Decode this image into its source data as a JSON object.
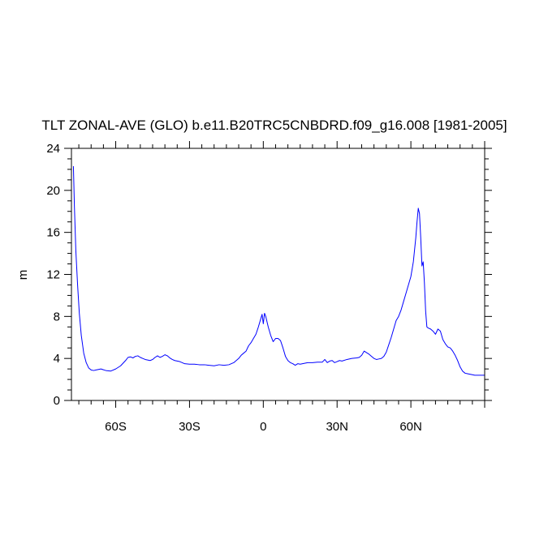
{
  "chart_data": {
    "type": "line",
    "title": "TLT ZONAL-AVE (GLO) b.e11.B20TRC5CNBDRD.f09_g16.008 [1981-2005]",
    "xlabel": "",
    "ylabel": "m",
    "xlim": [
      -78,
      90
    ],
    "ylim": [
      0,
      24
    ],
    "x_ticks": [
      -60,
      -30,
      0,
      30,
      60
    ],
    "x_tick_labels": [
      "60S",
      "30S",
      "0",
      "30N",
      "60N"
    ],
    "y_ticks": [
      0,
      4,
      8,
      12,
      16,
      20,
      24
    ],
    "y_tick_labels": [
      "0",
      "4",
      "8",
      "12",
      "16",
      "20",
      "24"
    ],
    "grid": false,
    "legend": "none",
    "series": [
      {
        "color": "#0000ff",
        "x": [
          -77.2,
          -76.8,
          -76.2,
          -75.5,
          -74.8,
          -74,
          -73,
          -72,
          -71,
          -70,
          -69,
          -68,
          -66,
          -64,
          -62,
          -60,
          -58,
          -56,
          -55,
          -54,
          -53,
          -52,
          -51,
          -50,
          -49,
          -48,
          -47,
          -46,
          -45,
          -44,
          -43,
          -42,
          -41,
          -40,
          -39,
          -38,
          -37,
          -36,
          -35,
          -34,
          -33,
          -32,
          -30,
          -28,
          -26,
          -24,
          -22,
          -20,
          -18,
          -16,
          -14,
          -12,
          -11,
          -10,
          -9,
          -8,
          -7,
          -6,
          -5,
          -4,
          -3,
          -2,
          -1,
          -0.5,
          0,
          0.5,
          1,
          2,
          3,
          4,
          5,
          6,
          7,
          8,
          9,
          10,
          11,
          12,
          13,
          14,
          15,
          16,
          17,
          18,
          20,
          22,
          24,
          25,
          26,
          27,
          28,
          29,
          30,
          31,
          32,
          34,
          36,
          38,
          39,
          40,
          41,
          42,
          43,
          44,
          45,
          46,
          47,
          48,
          49,
          50,
          51,
          52,
          53,
          54,
          55,
          56,
          57,
          58,
          59,
          60,
          61,
          62,
          62.5,
          63,
          63.5,
          64,
          64.5,
          65,
          65.5,
          66,
          66.5,
          67,
          68,
          69,
          70,
          71,
          72,
          73,
          74,
          75,
          76,
          77,
          78,
          79,
          80,
          81,
          82,
          83,
          84,
          85,
          86,
          88,
          90
        ],
        "values": [
          22.3,
          18.5,
          14.2,
          11,
          8.3,
          6.2,
          4.5,
          3.6,
          3.1,
          2.9,
          2.85,
          2.9,
          3,
          2.85,
          2.8,
          3,
          3.3,
          3.8,
          4.1,
          4.15,
          4.05,
          4.2,
          4.25,
          4.1,
          4.0,
          3.9,
          3.85,
          3.8,
          3.9,
          4.1,
          4.25,
          4.1,
          4.2,
          4.35,
          4.25,
          4.05,
          3.9,
          3.8,
          3.75,
          3.7,
          3.6,
          3.5,
          3.45,
          3.45,
          3.4,
          3.4,
          3.35,
          3.3,
          3.4,
          3.35,
          3.4,
          3.6,
          3.8,
          4.0,
          4.3,
          4.5,
          4.7,
          5.2,
          5.5,
          5.9,
          6.3,
          7.0,
          7.8,
          8.2,
          7.3,
          8.3,
          8.0,
          7.0,
          6.2,
          5.6,
          5.9,
          5.9,
          5.7,
          5.0,
          4.2,
          3.8,
          3.6,
          3.5,
          3.35,
          3.5,
          3.45,
          3.5,
          3.55,
          3.6,
          3.6,
          3.65,
          3.65,
          3.9,
          3.6,
          3.75,
          3.8,
          3.6,
          3.7,
          3.8,
          3.75,
          3.9,
          4.0,
          4.05,
          4.1,
          4.3,
          4.7,
          4.55,
          4.4,
          4.2,
          4.0,
          3.9,
          3.95,
          4.0,
          4.2,
          4.6,
          5.3,
          6.0,
          6.8,
          7.6,
          8.0,
          8.6,
          9.4,
          10.2,
          11.0,
          11.8,
          13.2,
          15.5,
          17.0,
          18.3,
          17.8,
          15.5,
          12.8,
          13.2,
          11.2,
          8.5,
          7.0,
          6.9,
          6.8,
          6.6,
          6.3,
          6.8,
          6.6,
          5.8,
          5.4,
          5.1,
          5.0,
          4.7,
          4.3,
          3.8,
          3.2,
          2.8,
          2.6,
          2.55,
          2.5,
          2.45,
          2.4,
          2.4,
          2.4
        ]
      }
    ]
  }
}
